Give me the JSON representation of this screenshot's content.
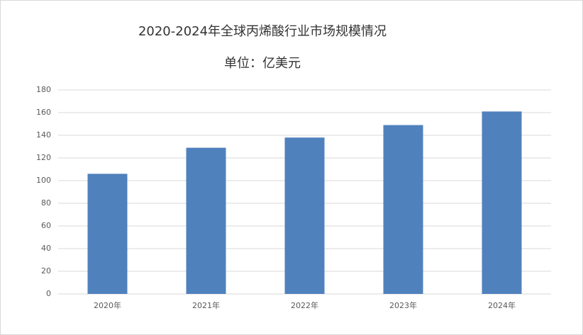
{
  "chart_data": {
    "type": "bar",
    "title": "2020-2024年全球丙烯酸行业市场规模情况",
    "subtitle": "单位：亿美元",
    "categories": [
      "2020年",
      "2021年",
      "2022年",
      "2023年",
      "2024年"
    ],
    "values": [
      106,
      129,
      138,
      149,
      161
    ],
    "color": "#4f81bd",
    "ylim": [
      0,
      180
    ],
    "yticks": [
      0,
      20,
      40,
      60,
      80,
      100,
      120,
      140,
      160,
      180
    ],
    "grid": true
  }
}
